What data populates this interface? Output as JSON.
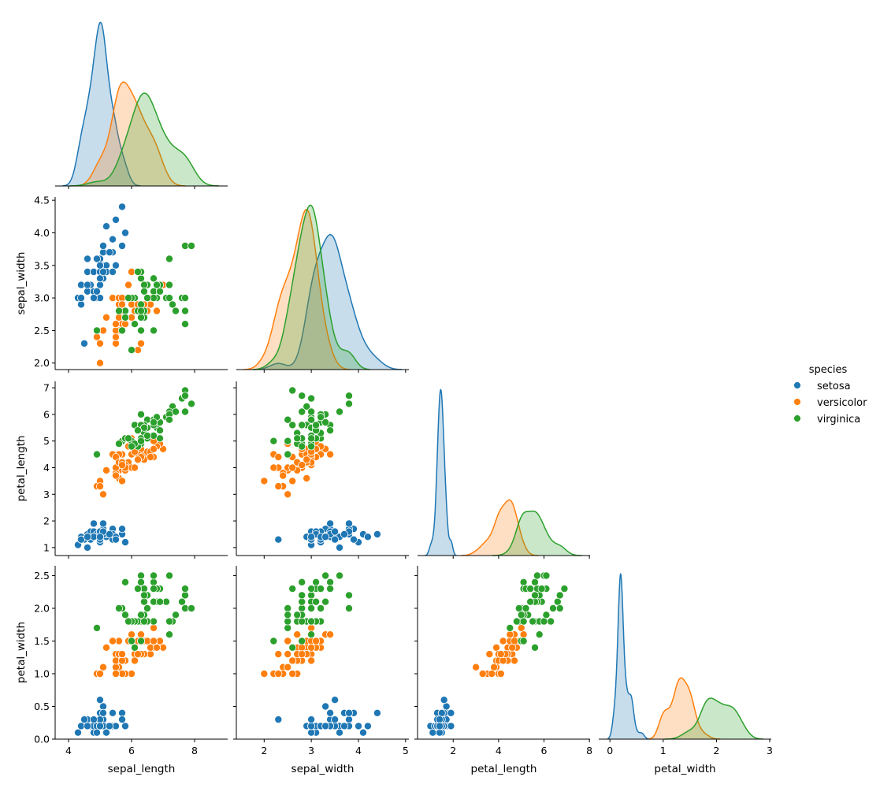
{
  "chart_data": {
    "type": "scatter",
    "kind": "pairplot",
    "corner": true,
    "diag_kind": "kde",
    "variables": [
      "sepal_length",
      "sepal_width",
      "petal_length",
      "petal_width"
    ],
    "axes": {
      "sepal_length": {
        "lim": [
          3.575,
          9.05
        ],
        "ticks": [
          4,
          6,
          8
        ],
        "tick_labels": [
          "4",
          "6",
          "8"
        ]
      },
      "sepal_width": {
        "lim": [
          1.41,
          5.07
        ],
        "ylim": [
          1.9,
          4.55
        ],
        "ticks": [
          2,
          3,
          4,
          5
        ],
        "tick_labels": [
          "2",
          "3",
          "4",
          "5"
        ],
        "yticks": [
          2.0,
          2.5,
          3.0,
          3.5,
          4.0,
          4.5
        ],
        "ytick_labels": [
          "2.0",
          "2.5",
          "3.0",
          "3.5",
          "4.0",
          "4.5"
        ]
      },
      "petal_length": {
        "lim": [
          0.43,
          8.03
        ],
        "ylim": [
          0.7,
          7.24
        ],
        "ticks": [
          2,
          4,
          6,
          8
        ],
        "tick_labels": [
          "2",
          "4",
          "6",
          "8"
        ],
        "yticks": [
          1,
          2,
          3,
          4,
          5,
          6,
          7
        ],
        "ytick_labels": [
          "1",
          "2",
          "3",
          "4",
          "5",
          "6",
          "7"
        ]
      },
      "petal_width": {
        "lim": [
          -0.21,
          3.03
        ],
        "ylim": [
          0.0,
          2.65
        ],
        "ticks": [
          0,
          1,
          2,
          3
        ],
        "tick_labels": [
          "0",
          "1",
          "2",
          "3"
        ],
        "yticks": [
          0.0,
          0.5,
          1.0,
          1.5,
          2.0,
          2.5
        ],
        "ytick_labels": [
          "0.0",
          "0.5",
          "1.0",
          "1.5",
          "2.0",
          "2.5"
        ]
      }
    },
    "legend": {
      "title": "species",
      "placement": "right",
      "items": [
        "setosa",
        "versicolor",
        "virginica"
      ]
    },
    "colors": {
      "setosa": "#1f77b4",
      "versicolor": "#ff7f0e",
      "virginica": "#2ca02c"
    },
    "grid": false,
    "series": [
      {
        "name": "setosa",
        "rows": [
          [
            5.1,
            3.5,
            1.4,
            0.2
          ],
          [
            4.9,
            3.0,
            1.4,
            0.2
          ],
          [
            4.7,
            3.2,
            1.3,
            0.2
          ],
          [
            4.6,
            3.1,
            1.5,
            0.2
          ],
          [
            5.0,
            3.6,
            1.4,
            0.2
          ],
          [
            5.4,
            3.9,
            1.7,
            0.4
          ],
          [
            4.6,
            3.4,
            1.4,
            0.3
          ],
          [
            5.0,
            3.4,
            1.5,
            0.2
          ],
          [
            4.4,
            2.9,
            1.4,
            0.2
          ],
          [
            4.9,
            3.1,
            1.5,
            0.1
          ],
          [
            5.4,
            3.7,
            1.5,
            0.2
          ],
          [
            4.8,
            3.4,
            1.6,
            0.2
          ],
          [
            4.8,
            3.0,
            1.4,
            0.1
          ],
          [
            4.3,
            3.0,
            1.1,
            0.1
          ],
          [
            5.8,
            4.0,
            1.2,
            0.2
          ],
          [
            5.7,
            4.4,
            1.5,
            0.4
          ],
          [
            5.4,
            3.9,
            1.3,
            0.4
          ],
          [
            5.1,
            3.5,
            1.4,
            0.3
          ],
          [
            5.7,
            3.8,
            1.7,
            0.3
          ],
          [
            5.1,
            3.8,
            1.5,
            0.3
          ],
          [
            5.4,
            3.4,
            1.7,
            0.2
          ],
          [
            5.1,
            3.7,
            1.5,
            0.4
          ],
          [
            4.6,
            3.6,
            1.0,
            0.2
          ],
          [
            5.1,
            3.3,
            1.7,
            0.5
          ],
          [
            4.8,
            3.4,
            1.9,
            0.2
          ],
          [
            5.0,
            3.0,
            1.6,
            0.2
          ],
          [
            5.0,
            3.4,
            1.6,
            0.4
          ],
          [
            5.2,
            3.5,
            1.5,
            0.2
          ],
          [
            5.2,
            3.4,
            1.4,
            0.2
          ],
          [
            4.7,
            3.2,
            1.6,
            0.2
          ],
          [
            4.8,
            3.1,
            1.6,
            0.2
          ],
          [
            5.4,
            3.4,
            1.5,
            0.4
          ],
          [
            5.2,
            4.1,
            1.5,
            0.1
          ],
          [
            5.5,
            4.2,
            1.4,
            0.2
          ],
          [
            4.9,
            3.1,
            1.5,
            0.2
          ],
          [
            5.0,
            3.2,
            1.2,
            0.2
          ],
          [
            5.5,
            3.5,
            1.3,
            0.2
          ],
          [
            4.9,
            3.6,
            1.4,
            0.1
          ],
          [
            4.4,
            3.0,
            1.3,
            0.2
          ],
          [
            5.1,
            3.4,
            1.5,
            0.2
          ],
          [
            5.0,
            3.5,
            1.3,
            0.3
          ],
          [
            4.5,
            2.3,
            1.3,
            0.3
          ],
          [
            4.4,
            3.2,
            1.3,
            0.2
          ],
          [
            5.0,
            3.5,
            1.6,
            0.6
          ],
          [
            5.1,
            3.8,
            1.9,
            0.4
          ],
          [
            4.8,
            3.0,
            1.4,
            0.3
          ],
          [
            5.1,
            3.8,
            1.6,
            0.2
          ],
          [
            4.6,
            3.2,
            1.4,
            0.2
          ],
          [
            5.3,
            3.7,
            1.5,
            0.2
          ],
          [
            5.0,
            3.3,
            1.4,
            0.2
          ]
        ]
      },
      {
        "name": "versicolor",
        "rows": [
          [
            7.0,
            3.2,
            4.7,
            1.4
          ],
          [
            6.4,
            3.2,
            4.5,
            1.5
          ],
          [
            6.9,
            3.1,
            4.9,
            1.5
          ],
          [
            5.5,
            2.3,
            4.0,
            1.3
          ],
          [
            6.5,
            2.8,
            4.6,
            1.5
          ],
          [
            5.7,
            2.8,
            4.5,
            1.3
          ],
          [
            6.3,
            3.3,
            4.7,
            1.6
          ],
          [
            4.9,
            2.4,
            3.3,
            1.0
          ],
          [
            6.6,
            2.9,
            4.6,
            1.3
          ],
          [
            5.2,
            2.7,
            3.9,
            1.4
          ],
          [
            5.0,
            2.0,
            3.5,
            1.0
          ],
          [
            5.9,
            3.0,
            4.2,
            1.5
          ],
          [
            6.0,
            2.2,
            4.0,
            1.0
          ],
          [
            6.1,
            2.9,
            4.7,
            1.4
          ],
          [
            5.6,
            2.9,
            3.6,
            1.3
          ],
          [
            6.7,
            3.1,
            4.4,
            1.4
          ],
          [
            5.6,
            3.0,
            4.5,
            1.5
          ],
          [
            5.8,
            2.7,
            4.1,
            1.0
          ],
          [
            6.2,
            2.2,
            4.5,
            1.5
          ],
          [
            5.6,
            2.5,
            3.9,
            1.1
          ],
          [
            5.9,
            3.2,
            4.8,
            1.8
          ],
          [
            6.1,
            2.8,
            4.0,
            1.3
          ],
          [
            6.3,
            2.5,
            4.9,
            1.5
          ],
          [
            6.1,
            2.8,
            4.7,
            1.2
          ],
          [
            6.4,
            2.9,
            4.3,
            1.3
          ],
          [
            6.6,
            3.0,
            4.4,
            1.4
          ],
          [
            6.8,
            2.8,
            4.8,
            1.4
          ],
          [
            6.7,
            3.0,
            5.0,
            1.7
          ],
          [
            6.0,
            2.9,
            4.5,
            1.5
          ],
          [
            5.7,
            2.6,
            3.5,
            1.0
          ],
          [
            5.5,
            2.4,
            3.8,
            1.1
          ],
          [
            5.5,
            2.4,
            3.7,
            1.0
          ],
          [
            5.8,
            2.7,
            3.9,
            1.2
          ],
          [
            6.0,
            2.7,
            5.1,
            1.6
          ],
          [
            5.4,
            3.0,
            4.5,
            1.5
          ],
          [
            6.0,
            3.4,
            4.5,
            1.6
          ],
          [
            6.7,
            3.1,
            4.7,
            1.5
          ],
          [
            6.3,
            2.3,
            4.4,
            1.3
          ],
          [
            5.6,
            3.0,
            4.1,
            1.3
          ],
          [
            5.5,
            2.5,
            4.0,
            1.3
          ],
          [
            5.5,
            2.6,
            4.4,
            1.2
          ],
          [
            6.1,
            3.0,
            4.6,
            1.4
          ],
          [
            5.8,
            2.6,
            4.0,
            1.2
          ],
          [
            5.0,
            2.3,
            3.3,
            1.0
          ],
          [
            5.6,
            2.7,
            4.2,
            1.3
          ],
          [
            5.7,
            3.0,
            4.2,
            1.2
          ],
          [
            5.7,
            2.9,
            4.2,
            1.3
          ],
          [
            6.2,
            2.9,
            4.3,
            1.3
          ],
          [
            5.1,
            2.5,
            3.0,
            1.1
          ],
          [
            5.7,
            2.8,
            4.1,
            1.3
          ]
        ]
      },
      {
        "name": "virginica",
        "rows": [
          [
            6.3,
            3.3,
            6.0,
            2.5
          ],
          [
            5.8,
            2.7,
            5.1,
            1.9
          ],
          [
            7.1,
            3.0,
            5.9,
            2.1
          ],
          [
            6.3,
            2.9,
            5.6,
            1.8
          ],
          [
            6.5,
            3.0,
            5.8,
            2.2
          ],
          [
            7.6,
            3.0,
            6.6,
            2.1
          ],
          [
            4.9,
            2.5,
            4.5,
            1.7
          ],
          [
            7.3,
            2.9,
            6.3,
            1.8
          ],
          [
            6.7,
            2.5,
            5.8,
            1.8
          ],
          [
            7.2,
            3.6,
            6.1,
            2.5
          ],
          [
            6.5,
            3.2,
            5.1,
            2.0
          ],
          [
            6.4,
            2.7,
            5.3,
            1.9
          ],
          [
            6.8,
            3.0,
            5.5,
            2.1
          ],
          [
            5.7,
            2.5,
            5.0,
            2.0
          ],
          [
            5.8,
            2.8,
            5.1,
            2.4
          ],
          [
            6.4,
            3.2,
            5.3,
            2.3
          ],
          [
            6.5,
            3.0,
            5.5,
            1.8
          ],
          [
            7.7,
            3.8,
            6.7,
            2.2
          ],
          [
            7.7,
            2.6,
            6.9,
            2.3
          ],
          [
            6.0,
            2.2,
            5.0,
            1.5
          ],
          [
            6.9,
            3.2,
            5.7,
            2.3
          ],
          [
            5.6,
            2.8,
            4.9,
            2.0
          ],
          [
            7.7,
            2.8,
            6.7,
            2.0
          ],
          [
            6.3,
            2.7,
            4.9,
            1.8
          ],
          [
            6.7,
            3.3,
            5.7,
            2.1
          ],
          [
            7.2,
            3.2,
            6.0,
            1.8
          ],
          [
            6.2,
            2.8,
            4.8,
            1.8
          ],
          [
            6.1,
            3.0,
            4.9,
            1.8
          ],
          [
            6.4,
            2.8,
            5.6,
            2.1
          ],
          [
            7.2,
            3.0,
            5.8,
            1.6
          ],
          [
            7.4,
            2.8,
            6.1,
            1.9
          ],
          [
            7.9,
            3.8,
            6.4,
            2.0
          ],
          [
            6.4,
            2.8,
            5.6,
            2.2
          ],
          [
            6.3,
            2.8,
            5.1,
            1.5
          ],
          [
            6.1,
            2.6,
            5.6,
            1.4
          ],
          [
            7.7,
            3.0,
            6.1,
            2.3
          ],
          [
            6.3,
            3.4,
            5.6,
            2.4
          ],
          [
            6.4,
            3.1,
            5.5,
            1.8
          ],
          [
            6.0,
            3.0,
            4.8,
            1.8
          ],
          [
            6.9,
            3.1,
            5.4,
            2.1
          ],
          [
            6.7,
            3.1,
            5.6,
            2.4
          ],
          [
            6.9,
            3.1,
            5.1,
            2.3
          ],
          [
            5.8,
            2.7,
            5.1,
            1.9
          ],
          [
            6.8,
            3.2,
            5.9,
            2.3
          ],
          [
            6.7,
            3.3,
            5.7,
            2.5
          ],
          [
            6.7,
            3.0,
            5.2,
            2.3
          ],
          [
            6.3,
            2.5,
            5.0,
            1.9
          ],
          [
            6.5,
            3.0,
            5.2,
            2.0
          ],
          [
            6.2,
            3.4,
            5.4,
            2.3
          ],
          [
            5.9,
            3.0,
            5.1,
            1.8
          ]
        ]
      }
    ]
  }
}
